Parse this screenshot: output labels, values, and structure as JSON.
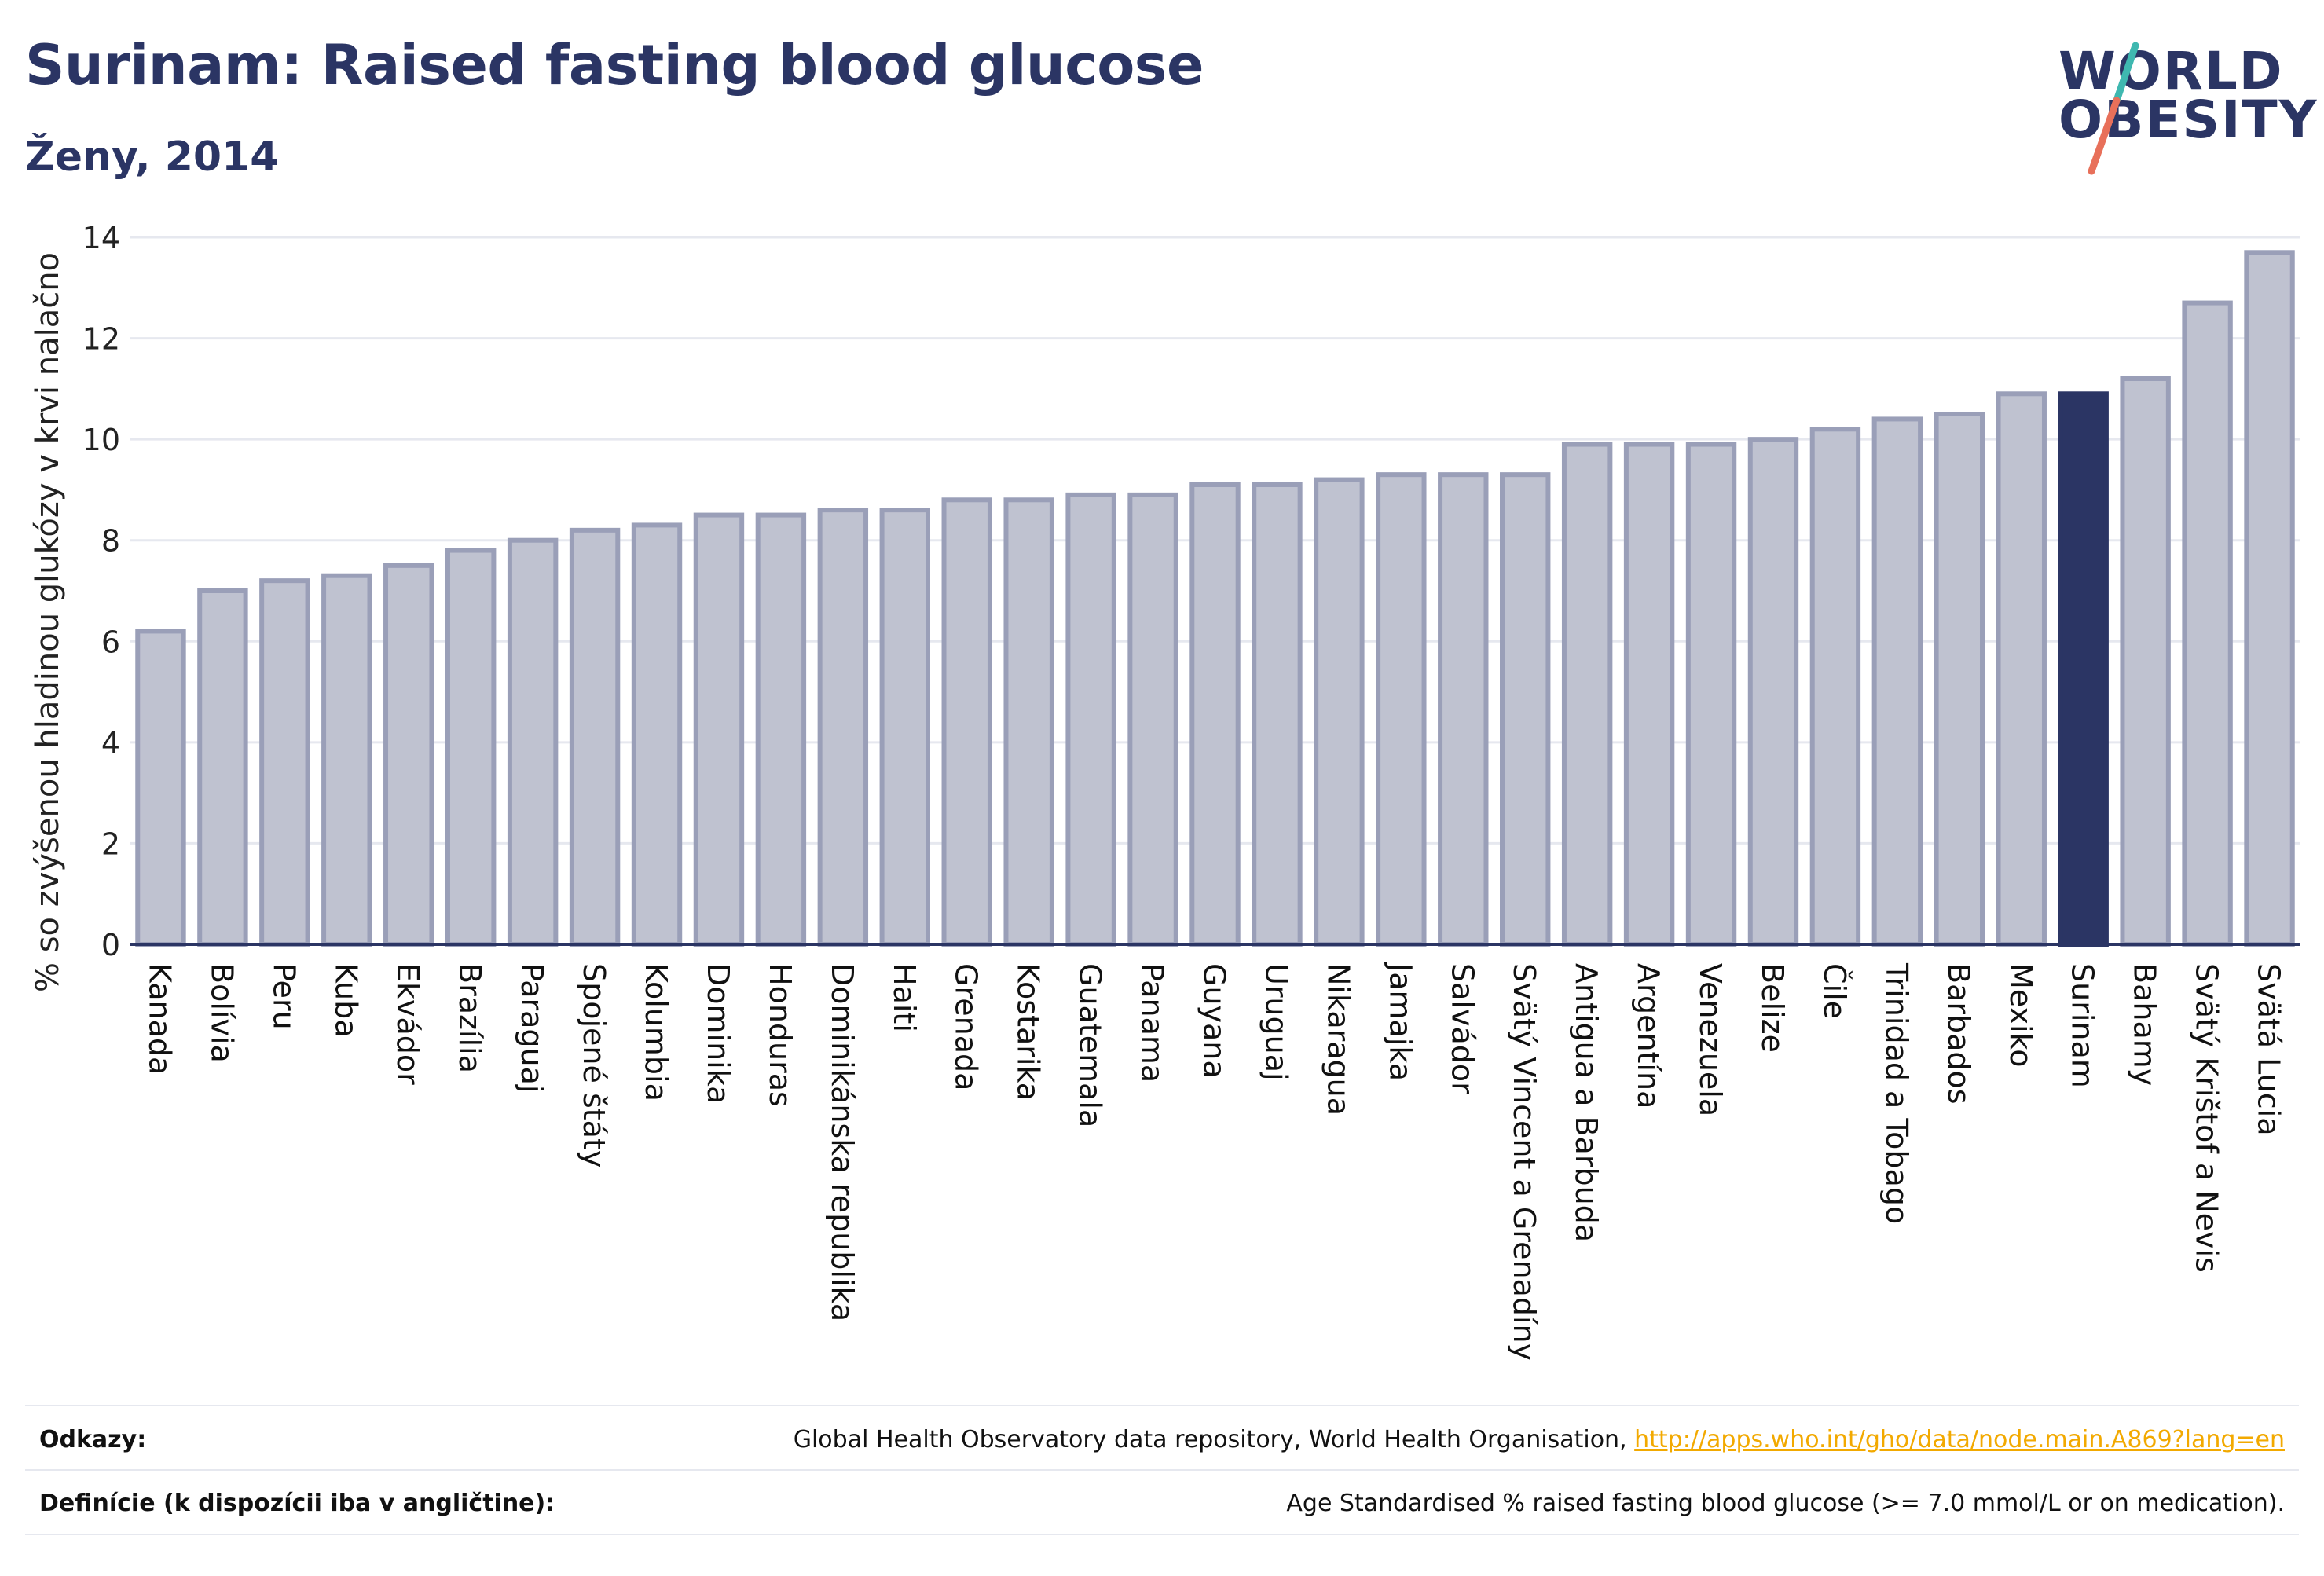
{
  "title": "Surinam: Raised fasting blood glucose",
  "subtitle": "Ženy, 2014",
  "logo": {
    "line1": "WORLD",
    "line2": "OBESITY",
    "accent_teal": "#3fb8b0",
    "accent_red": "#e8705a"
  },
  "colors": {
    "bar": "#bfc2d0",
    "bar_stroke": "#9a9fb8",
    "highlight": "#2b3564",
    "grid": "#e6e8ef",
    "axis": "#2b3564"
  },
  "chart_data": {
    "type": "bar",
    "ylabel": "% so zvýšenou hladinou glukózy v krvi nalačno",
    "ylim": [
      0,
      14
    ],
    "yticks": [
      0,
      2,
      4,
      6,
      8,
      10,
      12,
      14
    ],
    "grid": true,
    "highlight": "Surinam",
    "categories": [
      "Kanada",
      "Bolívia",
      "Peru",
      "Kuba",
      "Ekvádor",
      "Brazília",
      "Paraguaj",
      "Spojené štáty",
      "Kolumbia",
      "Dominika",
      "Honduras",
      "Dominikánska republika",
      "Haiti",
      "Grenada",
      "Kostarika",
      "Guatemala",
      "Panama",
      "Guyana",
      "Uruguaj",
      "Nikaragua",
      "Jamajka",
      "Salvádor",
      "Svätý Vincent a Grenadíny",
      "Antigua a Barbuda",
      "Argentína",
      "Venezuela",
      "Belize",
      "Čile",
      "Trinidad a Tobago",
      "Barbados",
      "Mexiko",
      "Surinam",
      "Bahamy",
      "Svätý Krištof a Nevis",
      "Svätá Lucia"
    ],
    "values": [
      6.2,
      7.0,
      7.2,
      7.3,
      7.5,
      7.8,
      8.0,
      8.2,
      8.3,
      8.5,
      8.5,
      8.6,
      8.6,
      8.8,
      8.8,
      8.9,
      8.9,
      9.1,
      9.1,
      9.2,
      9.3,
      9.3,
      9.3,
      9.9,
      9.9,
      9.9,
      10.0,
      10.2,
      10.4,
      10.5,
      10.9,
      10.9,
      11.2,
      12.7,
      13.7
    ]
  },
  "footer": {
    "sources_label": "Odkazy:",
    "sources_text": "Global Health Observatory data repository, World Health Organisation, ",
    "sources_link": "http://apps.who.int/gho/data/node.main.A869?lang=en",
    "definition_label": "Definície (k dispozícii iba v angličtine):",
    "definition_text": "Age Standardised % raised fasting blood glucose (>= 7.0 mmol/L or on medication)."
  }
}
